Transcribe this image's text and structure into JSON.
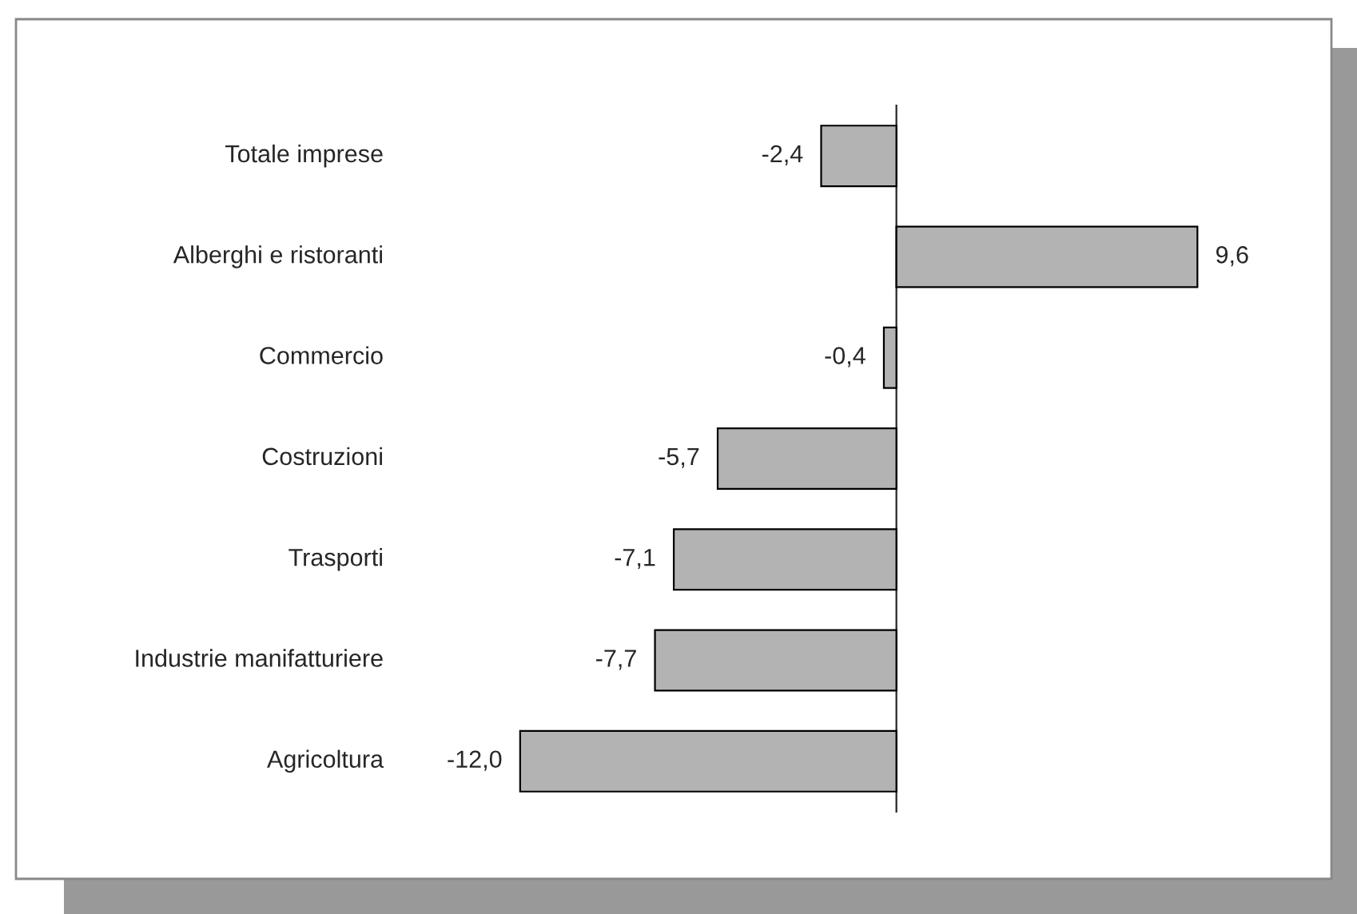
{
  "chart_data": {
    "type": "bar",
    "orientation": "horizontal",
    "categories": [
      "Totale imprese",
      "Alberghi e ristoranti",
      "Commercio",
      "Costruzioni",
      "Trasporti",
      "Industrie manifatturiere",
      "Agricoltura"
    ],
    "values": [
      -2.4,
      9.6,
      -0.4,
      -5.7,
      -7.1,
      -7.7,
      -12.0
    ],
    "value_labels": [
      "-2,4",
      "9,6",
      "-0,4",
      "-5,7",
      "-7,1",
      "-7,7",
      "-12,0"
    ],
    "color": "#b3b3b3",
    "grid": false,
    "legend": false
  }
}
